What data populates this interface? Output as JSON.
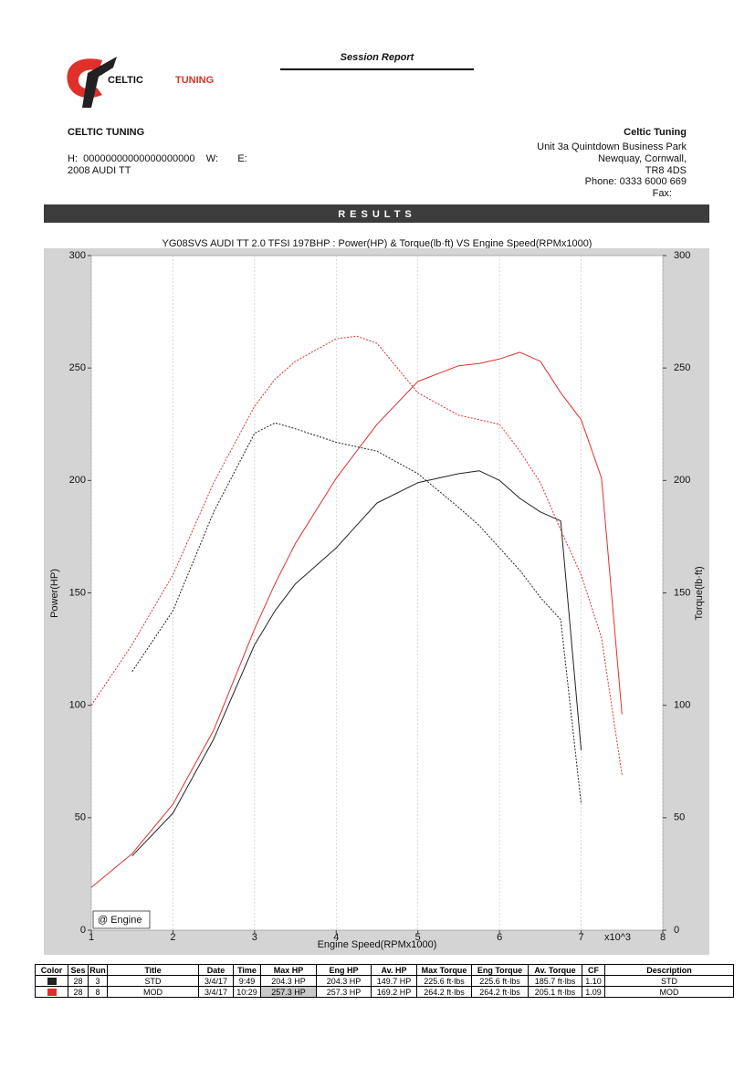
{
  "header": {
    "report_title": "Session Report",
    "logo": [
      "CELTIC",
      "TUNING"
    ],
    "company": "CELTIC TUNING",
    "customer_line": "H:  00000000000000000000    W:       E:",
    "vehicle": "2008 AUDI TT",
    "dealer": "Celtic Tuning",
    "address": [
      "Unit 3a Quintdown Business Park",
      "Newquay, Cornwall,",
      "TR8 4DS",
      "Phone: 0333 6000 669",
      "Fax:"
    ],
    "section": "RESULTS"
  },
  "chart_data": {
    "type": "line",
    "title": "YG08SVS AUDI TT 2.0 TFSI 197BHP : Power(HP) & Torque(lb·ft) VS Engine Speed(RPMx1000)",
    "x_label": "Engine Speed(RPMx1000)",
    "y_label": "Power(HP)",
    "y2_label": "Torque(lb·ft)",
    "x_multiplier": "x10^3",
    "annotation": "@ Engine",
    "x": [
      1,
      1.5,
      2,
      2.5,
      3,
      3.25,
      3.5,
      4,
      4.25,
      4.5,
      5,
      5.5,
      5.75,
      6,
      6.25,
      6.5,
      6.75,
      7,
      7.25,
      7.5
    ],
    "series": [
      {
        "color": "#222222",
        "dash": false,
        "values": [
          null,
          33,
          52,
          85,
          127,
          142,
          154,
          170,
          180,
          190,
          199,
          203,
          204.3,
          200,
          192,
          186,
          182,
          80,
          null,
          null
        ]
      },
      {
        "color": "#e0302a",
        "dash": false,
        "values": [
          19,
          34,
          56,
          89,
          134,
          154,
          172,
          201,
          213,
          225,
          244,
          251,
          252,
          254,
          257,
          253,
          239,
          227,
          201,
          96
        ]
      },
      {
        "color": "#222222",
        "dash": true,
        "axis": "y2",
        "values": [
          null,
          115,
          142,
          186,
          221,
          225.6,
          223,
          217,
          215,
          213,
          203,
          188,
          180,
          170,
          160,
          148,
          138,
          56,
          null,
          null
        ]
      },
      {
        "color": "#e0302a",
        "dash": true,
        "axis": "y2",
        "values": [
          100,
          127,
          158,
          199,
          233,
          245,
          253,
          263,
          264.2,
          261,
          239,
          229,
          227,
          225,
          213,
          199,
          178,
          158,
          130,
          69
        ]
      }
    ],
    "xlim": [
      1,
      8
    ],
    "xticks": [
      1,
      2,
      3,
      4,
      5,
      6,
      7,
      8
    ],
    "ylim": [
      0,
      300
    ],
    "yticks": [
      0,
      50,
      100,
      150,
      200,
      250,
      300
    ],
    "y2lim": [
      0,
      300
    ],
    "y2ticks": [
      0,
      50,
      100,
      150,
      200,
      250,
      300
    ],
    "grid": "x"
  },
  "table": {
    "header": [
      "Color",
      "Ses",
      "Run",
      "Title",
      "Date",
      "Time",
      "Max HP",
      "Eng HP",
      "Av. HP",
      "Max Torque",
      "Eng Torque",
      "Av. Torque",
      "CF",
      "Description"
    ],
    "rows": [
      [
        "28",
        "3",
        "STD",
        "3/4/17",
        "9:49",
        "204.3 HP",
        "204.3 HP",
        "149.7 HP",
        "225.6 ft·lbs",
        "225.6 ft·lbs",
        "185.7 ft·lbs",
        "1.10",
        "STD"
      ],
      [
        "28",
        "8",
        "MOD",
        "3/4/17",
        "10:29",
        "257.3 HP",
        "257.3 HP",
        "169.2 HP",
        "264.2 ft·lbs",
        "264.2 ft·lbs",
        "205.1 ft·lbs",
        "1.09",
        "MOD"
      ]
    ]
  }
}
